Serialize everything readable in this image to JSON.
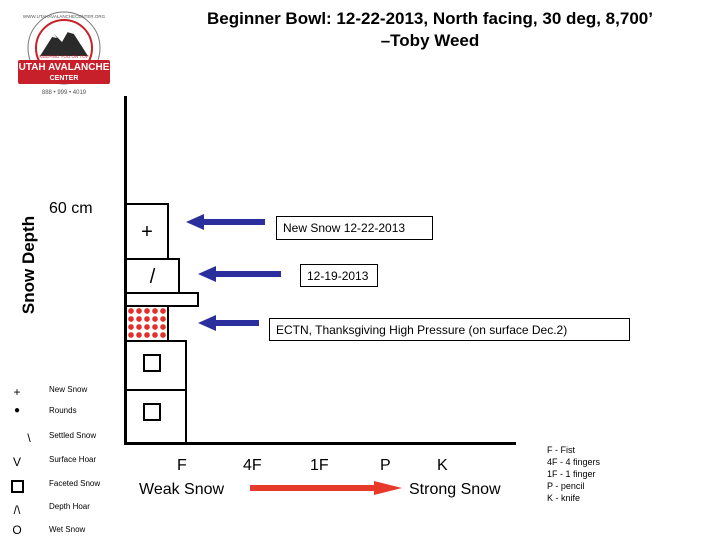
{
  "title_line1": "Beginner Bowl:  12-22-2013, North facing, 30 deg, 8,700’",
  "title_line2": "–Toby Weed",
  "logo": {
    "top_arc": "WWW.UTAHAVALANCHECENTER.ORG",
    "ribbon": "KEEPING YOU ON TOP",
    "name_line1": "UTAH AVALANCHE",
    "name_line2": "CENTER",
    "phone": "888 • 999 • 4019"
  },
  "y_axis_label": "Snow Depth",
  "depth_label": "60 cm",
  "layer_symbols": {
    "new": "+",
    "settled": "/"
  },
  "annotations": [
    "New Snow 12-22-2013",
    "12-19-2013",
    "ECTN, Thanksgiving High Pressure (on surface Dec.2)"
  ],
  "hardness_ticks": [
    "F",
    "4F",
    "1F",
    "P",
    "K"
  ],
  "weak_label": "Weak Snow",
  "strong_label": "Strong Snow",
  "hardness_key": [
    "F - Fist",
    "4F - 4 fingers",
    "1F - 1 finger",
    "P - pencil",
    "K - knife"
  ],
  "legend": [
    {
      "symbol": "+",
      "icon": "plus",
      "label": "New Snow"
    },
    {
      "symbol": "●",
      "icon": "dot",
      "label": "Rounds"
    },
    {
      "symbol": "\\",
      "icon": "backslash",
      "label": "Settled Snow"
    },
    {
      "symbol": "V",
      "icon": "v",
      "label": "Surface Hoar"
    },
    {
      "symbol": "",
      "icon": "square",
      "label": "Faceted Snow"
    },
    {
      "symbol": "/\\",
      "icon": "caret",
      "label": "Depth Hoar"
    },
    {
      "symbol": "O",
      "icon": "circle",
      "label": "Wet Snow"
    }
  ],
  "colors": {
    "arrow_blue": "#2b2f9e",
    "arrow_red": "#e83a2a",
    "ice_red": "#e0312a",
    "logo_red": "#c8202a"
  }
}
